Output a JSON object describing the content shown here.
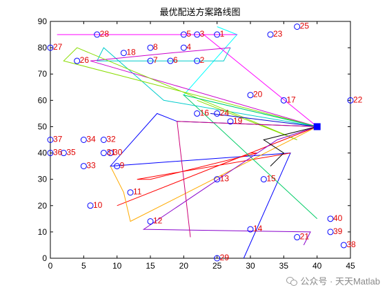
{
  "chart_data": {
    "type": "line",
    "title": "最优配送方案路线图",
    "xlim": [
      0,
      45
    ],
    "ylim": [
      0,
      90
    ],
    "xticks": [
      0,
      5,
      10,
      15,
      20,
      25,
      30,
      35,
      40,
      45
    ],
    "yticks": [
      0,
      10,
      20,
      30,
      40,
      50,
      60,
      70,
      80,
      90
    ],
    "grid": false,
    "depot": {
      "x": 40,
      "y": 50,
      "color": "#0000ff"
    },
    "points": [
      {
        "id": "1",
        "x": 25,
        "y": 85
      },
      {
        "id": "2",
        "x": 22,
        "y": 75
      },
      {
        "id": "3",
        "x": 22,
        "y": 85
      },
      {
        "id": "4",
        "x": 20,
        "y": 80
      },
      {
        "id": "5",
        "x": 20,
        "y": 85
      },
      {
        "id": "6",
        "x": 18,
        "y": 75
      },
      {
        "id": "7",
        "x": 15,
        "y": 75
      },
      {
        "id": "8",
        "x": 15,
        "y": 80
      },
      {
        "id": "9",
        "x": 10,
        "y": 35
      },
      {
        "id": "10",
        "x": 6,
        "y": 20
      },
      {
        "id": "11",
        "x": 12,
        "y": 25
      },
      {
        "id": "12",
        "x": 15,
        "y": 14
      },
      {
        "id": "13",
        "x": 25,
        "y": 30
      },
      {
        "id": "14",
        "x": 30,
        "y": 11
      },
      {
        "id": "15",
        "x": 32,
        "y": 30
      },
      {
        "id": "16",
        "x": 22,
        "y": 55
      },
      {
        "id": "17",
        "x": 35,
        "y": 60
      },
      {
        "id": "18",
        "x": 11,
        "y": 78
      },
      {
        "id": "19",
        "x": 27,
        "y": 52
      },
      {
        "id": "20",
        "x": 30,
        "y": 62
      },
      {
        "id": "21",
        "x": 37,
        "y": 8
      },
      {
        "id": "22",
        "x": 45,
        "y": 60
      },
      {
        "id": "23",
        "x": 33,
        "y": 85
      },
      {
        "id": "24",
        "x": 25,
        "y": 55
      },
      {
        "id": "25",
        "x": 37,
        "y": 88
      },
      {
        "id": "26",
        "x": 4,
        "y": 75
      },
      {
        "id": "27",
        "x": 0,
        "y": 80
      },
      {
        "id": "28",
        "x": 7,
        "y": 85
      },
      {
        "id": "29",
        "x": 25,
        "y": 0
      },
      {
        "id": "30",
        "x": 9,
        "y": 40
      },
      {
        "id": "31",
        "x": 8,
        "y": 40
      },
      {
        "id": "32",
        "x": 8,
        "y": 45
      },
      {
        "id": "33",
        "x": 5,
        "y": 35
      },
      {
        "id": "34",
        "x": 5,
        "y": 45
      },
      {
        "id": "35",
        "x": 2,
        "y": 40
      },
      {
        "id": "36",
        "x": 0,
        "y": 40
      },
      {
        "id": "37",
        "x": 0,
        "y": 45
      },
      {
        "id": "38",
        "x": 44,
        "y": 5
      },
      {
        "id": "39",
        "x": 42,
        "y": 10
      },
      {
        "id": "40",
        "x": 42,
        "y": 15
      }
    ],
    "series": [
      {
        "color": "#00ffff",
        "x": [
          40,
          20,
          28,
          25
        ],
        "y": [
          50,
          62,
          85,
          88
        ]
      },
      {
        "color": "#ff00ff",
        "x": [
          40,
          23,
          1,
          3,
          5,
          28
        ],
        "y": [
          50,
          85,
          85,
          85,
          85,
          85
        ]
      },
      {
        "color": "#00cccc",
        "x": [
          40,
          17,
          8,
          7,
          26,
          27
        ],
        "y": [
          50,
          60,
          80,
          75,
          75,
          80
        ]
      },
      {
        "color": "#cc00cc",
        "x": [
          40,
          6,
          18,
          27
        ],
        "y": [
          50,
          75,
          78,
          80
        ]
      },
      {
        "color": "#88dd00",
        "x": [
          40,
          2,
          4,
          37,
          22
        ],
        "y": [
          50,
          75,
          80,
          45,
          60
        ]
      },
      {
        "color": "#0000ff",
        "x": [
          40,
          19,
          16,
          9,
          36,
          29
        ],
        "y": [
          50,
          52,
          55,
          35,
          40,
          0
        ]
      },
      {
        "color": "#0000cc",
        "x": [
          40,
          24
        ],
        "y": [
          50,
          55
        ]
      },
      {
        "color": "#ff0000",
        "x": [
          40,
          10,
          30,
          31,
          15,
          13,
          36
        ],
        "y": [
          50,
          20,
          40,
          40,
          30,
          30,
          40
        ]
      },
      {
        "color": "#ffaa00",
        "x": [
          40,
          12,
          11,
          9
        ],
        "y": [
          50,
          14,
          25,
          35
        ]
      },
      {
        "color": "#00cc66",
        "x": [
          40,
          20,
          40
        ],
        "y": [
          50,
          62,
          15
        ]
      },
      {
        "color": "#8800cc",
        "x": [
          40,
          34,
          14,
          39,
          38
        ],
        "y": [
          50,
          45,
          11,
          10,
          5
        ]
      },
      {
        "color": "#cc0077",
        "x": [
          40,
          19,
          21
        ],
        "y": [
          50,
          52,
          8
        ]
      },
      {
        "color": "#000000",
        "x": [
          40,
          32,
          35,
          33
        ],
        "y": [
          50,
          45,
          40,
          35
        ]
      }
    ]
  },
  "watermark": {
    "text": "公众号 · 天天Matlab",
    "icon": "wechat-icon"
  }
}
